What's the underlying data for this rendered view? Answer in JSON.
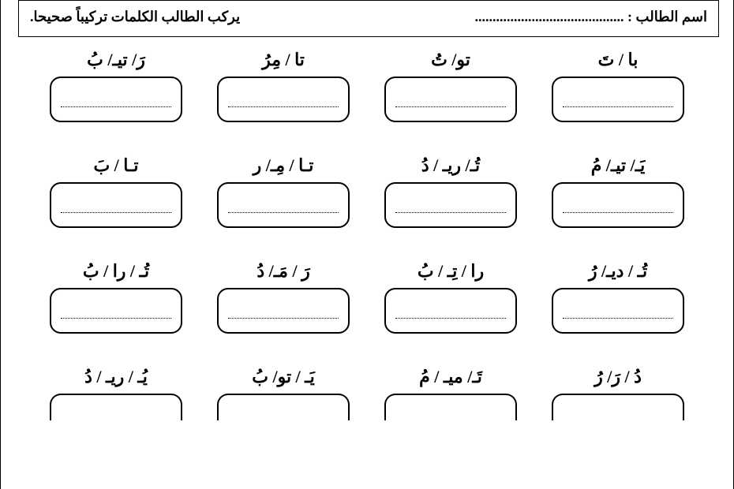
{
  "header": {
    "name_label": "اسم الطالب :",
    "name_dots": "..........................................",
    "instruction": "يركب الطالب الكلمات تركيباً صحيحا."
  },
  "rows": [
    [
      {
        "syllables": "با / تَ"
      },
      {
        "syllables": "تو/ تُ"
      },
      {
        "syllables": "تا / مِرُ"
      },
      {
        "syllables": "رَ/ تيـ/ بُ"
      }
    ],
    [
      {
        "syllables": "يَـ/ تيـ/ مُ"
      },
      {
        "syllables": "تُـ/ ريـ / دُ"
      },
      {
        "syllables": "تـا / مِـ/ ر"
      },
      {
        "syllables": "تـا / بَ"
      }
    ],
    [
      {
        "syllables": "تُـ / ديـ/ رُ"
      },
      {
        "syllables": "را / تِـ / بُ"
      },
      {
        "syllables": "رَ / مَـ/ دُ"
      },
      {
        "syllables": "تُـ / را / بُ"
      }
    ],
    [
      {
        "syllables": "دُ / رَ/ رُ"
      },
      {
        "syllables": "تَـ/ ميـ / مُ"
      },
      {
        "syllables": "يَـ / تو/ بُ"
      },
      {
        "syllables": "يُـ / ريـ / دُ"
      }
    ]
  ]
}
